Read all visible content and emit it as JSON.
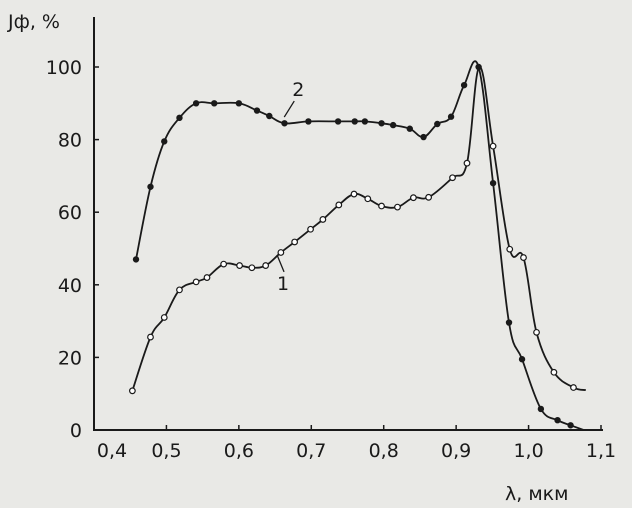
{
  "chart_data": {
    "type": "line",
    "title": "",
    "xlabel": "λ, мкм",
    "ylabel": "Jф, %",
    "xlim": [
      0.4,
      1.1
    ],
    "ylim": [
      0,
      100
    ],
    "xticks": [
      "0,4",
      "0,5",
      "0,6",
      "0,7",
      "0,8",
      "0,9",
      "1,0",
      "1,1"
    ],
    "xtick_values": [
      0.4,
      0.5,
      0.6,
      0.7,
      0.8,
      0.9,
      1.0,
      1.1
    ],
    "yticks": [
      "0",
      "20",
      "40",
      "60",
      "80",
      "100"
    ],
    "ytick_values": [
      0,
      20,
      40,
      60,
      80,
      100
    ],
    "grid": false,
    "series": [
      {
        "name": "1",
        "marker": "open-circle",
        "color": "#1a1a1a",
        "label_at": [
          0.661,
          38.6
        ],
        "x": [
          0.453,
          0.478,
          0.497,
          0.518,
          0.541,
          0.556,
          0.579,
          0.601,
          0.618,
          0.637,
          0.658,
          0.677,
          0.699,
          0.716,
          0.738,
          0.759,
          0.778,
          0.797,
          0.819,
          0.841,
          0.862,
          0.895,
          0.915,
          0.932,
          0.951,
          0.974,
          0.993,
          1.011,
          1.035,
          1.062,
          1.079
        ],
        "y": [
          10.8,
          25.6,
          31,
          38.6,
          40.8,
          42,
          45.7,
          45.3,
          44.7,
          45.3,
          48.9,
          51.8,
          55.3,
          58,
          62,
          65,
          63.7,
          61.7,
          61.4,
          64,
          64.1,
          69.5,
          73.5,
          100,
          78.2,
          49.8,
          47.5,
          26.9,
          15.9,
          11.7,
          11
        ],
        "markers": [
          true,
          true,
          true,
          true,
          true,
          true,
          true,
          true,
          true,
          true,
          true,
          true,
          true,
          true,
          true,
          true,
          true,
          true,
          true,
          true,
          true,
          true,
          true,
          false,
          true,
          true,
          true,
          true,
          true,
          true,
          false
        ]
      },
      {
        "name": "2",
        "marker": "filled-circle",
        "color": "#1a1a1a",
        "label_at": [
          0.682,
          92
        ],
        "x": [
          0.458,
          0.478,
          0.497,
          0.518,
          0.541,
          0.566,
          0.6,
          0.625,
          0.642,
          0.663,
          0.696,
          0.737,
          0.76,
          0.774,
          0.797,
          0.813,
          0.836,
          0.855,
          0.874,
          0.893,
          0.911,
          0.931,
          0.951,
          0.973,
          0.991,
          1.017,
          1.04,
          1.058,
          1.076
        ],
        "y": [
          47,
          67,
          79.5,
          86,
          90,
          90,
          90,
          88,
          86.5,
          84.5,
          85,
          85,
          85,
          85,
          84.5,
          84,
          83,
          80.7,
          84.3,
          86.3,
          95,
          100,
          68,
          29.6,
          19.5,
          5.8,
          2.7,
          1.3,
          0
        ],
        "markers": [
          true,
          true,
          true,
          true,
          true,
          true,
          true,
          true,
          true,
          true,
          true,
          true,
          true,
          true,
          true,
          true,
          true,
          true,
          true,
          true,
          true,
          true,
          true,
          true,
          true,
          true,
          true,
          true,
          false
        ]
      }
    ]
  }
}
